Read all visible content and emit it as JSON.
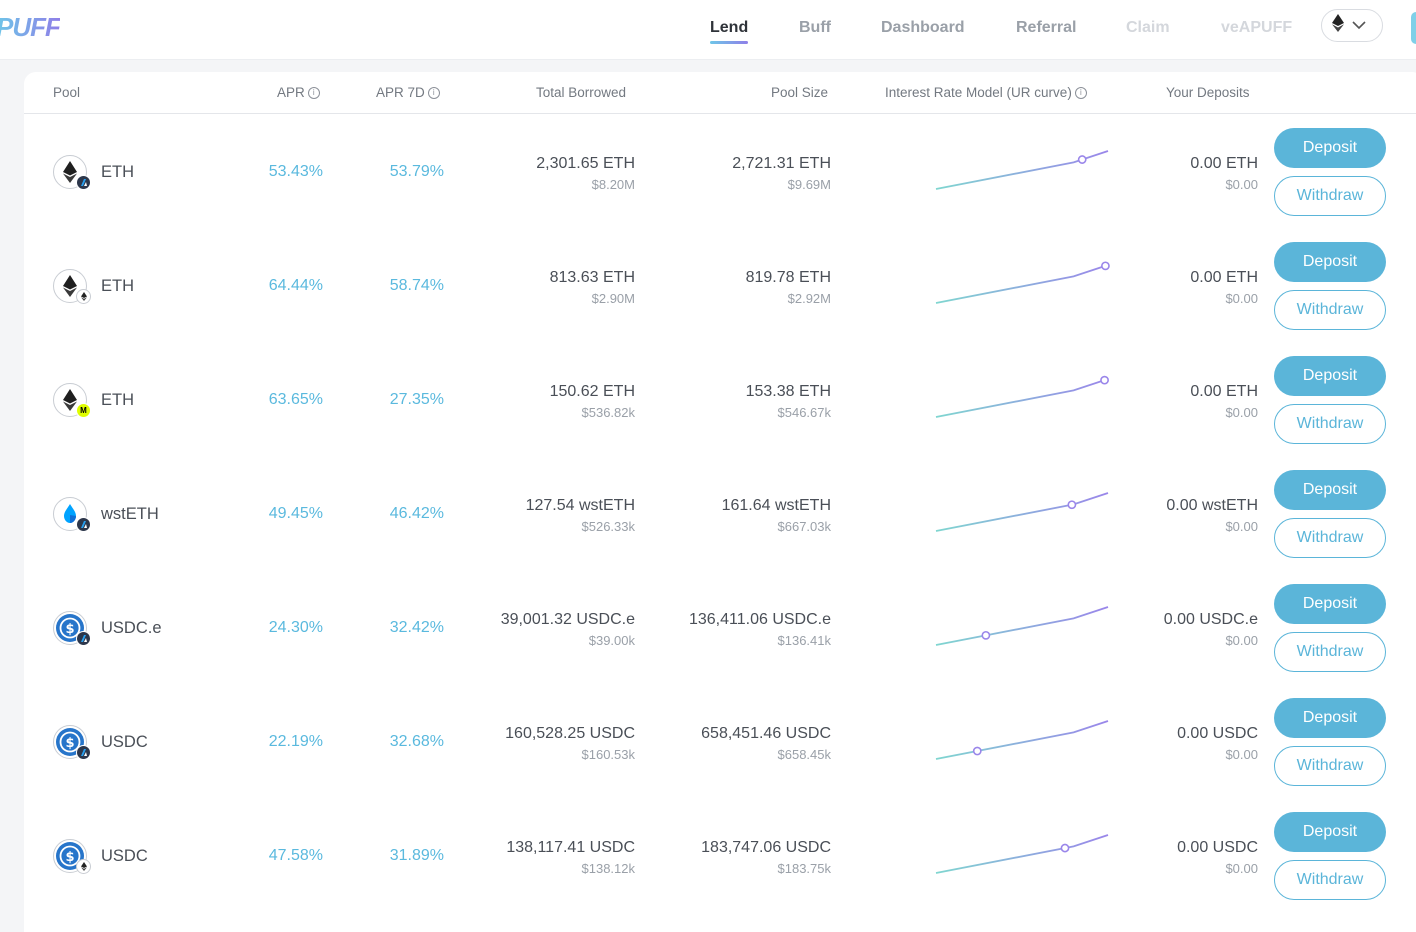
{
  "header": {
    "logo": "PUFF",
    "nav": [
      {
        "label": "Lend",
        "state": "active"
      },
      {
        "label": "Buff",
        "state": "normal"
      },
      {
        "label": "Dashboard",
        "state": "normal"
      },
      {
        "label": "Referral",
        "state": "normal"
      },
      {
        "label": "Claim",
        "state": "disabled"
      },
      {
        "label": "veAPUFF",
        "state": "disabled"
      }
    ],
    "network_icon": "eth-icon",
    "network_dropdown_icon": "chevron-down-icon"
  },
  "table": {
    "columns": {
      "pool": "Pool",
      "apr": "APR",
      "apr7d": "APR 7D",
      "total_borrowed": "Total Borrowed",
      "pool_size": "Pool Size",
      "interest_model": "Interest Rate Model (UR curve)",
      "your_deposits": "Your Deposits"
    },
    "deposit_label": "Deposit",
    "withdraw_label": "Withdraw",
    "rows": [
      {
        "asset": "ETH",
        "asset_icon": "eth-icon",
        "chain_badge": "arbitrum-icon",
        "apr": "53.43%",
        "apr7d": "53.79%",
        "borrowed": "2,301.65 ETH",
        "borrowed_usd": "$8.20M",
        "pool_size": "2,721.31 ETH",
        "pool_size_usd": "$9.69M",
        "utilization": 0.85,
        "deposit": "0.00 ETH",
        "deposit_usd": "$0.00"
      },
      {
        "asset": "ETH",
        "asset_icon": "eth-icon",
        "chain_badge": "ethereum-icon",
        "apr": "64.44%",
        "apr7d": "58.74%",
        "borrowed": "813.63 ETH",
        "borrowed_usd": "$2.90M",
        "pool_size": "819.78 ETH",
        "pool_size_usd": "$2.92M",
        "utilization": 0.99,
        "deposit": "0.00 ETH",
        "deposit_usd": "$0.00"
      },
      {
        "asset": "ETH",
        "asset_icon": "eth-icon",
        "chain_badge": "mode-icon",
        "apr": "63.65%",
        "apr7d": "27.35%",
        "borrowed": "150.62 ETH",
        "borrowed_usd": "$536.82k",
        "pool_size": "153.38 ETH",
        "pool_size_usd": "$546.67k",
        "utilization": 0.98,
        "deposit": "0.00 ETH",
        "deposit_usd": "$0.00"
      },
      {
        "asset": "wstETH",
        "asset_icon": "wsteth-icon",
        "chain_badge": "arbitrum-icon",
        "apr": "49.45%",
        "apr7d": "46.42%",
        "borrowed": "127.54 wstETH",
        "borrowed_usd": "$526.33k",
        "pool_size": "161.64 wstETH",
        "pool_size_usd": "$667.03k",
        "utilization": 0.79,
        "deposit": "0.00 wstETH",
        "deposit_usd": "$0.00"
      },
      {
        "asset": "USDC.e",
        "asset_icon": "usdc-icon",
        "chain_badge": "arbitrum-icon",
        "apr": "24.30%",
        "apr7d": "32.42%",
        "borrowed": "39,001.32 USDC.e",
        "borrowed_usd": "$39.00k",
        "pool_size": "136,411.06 USDC.e",
        "pool_size_usd": "$136.41k",
        "utilization": 0.29,
        "deposit": "0.00 USDC.e",
        "deposit_usd": "$0.00"
      },
      {
        "asset": "USDC",
        "asset_icon": "usdc-icon",
        "chain_badge": "arbitrum-icon",
        "apr": "22.19%",
        "apr7d": "32.68%",
        "borrowed": "160,528.25 USDC",
        "borrowed_usd": "$160.53k",
        "pool_size": "658,451.46 USDC",
        "pool_size_usd": "$658.45k",
        "utilization": 0.24,
        "deposit": "0.00 USDC",
        "deposit_usd": "$0.00"
      },
      {
        "asset": "USDC",
        "asset_icon": "usdc-icon",
        "chain_badge": "ethereum-icon",
        "apr": "47.58%",
        "apr7d": "31.89%",
        "borrowed": "138,117.41 USDC",
        "borrowed_usd": "$138.12k",
        "pool_size": "183,747.06 USDC",
        "pool_size_usd": "$183.75k",
        "utilization": 0.75,
        "deposit": "0.00 USDC",
        "deposit_usd": "$0.00"
      }
    ]
  },
  "colors": {
    "accent": "#5bb5d9",
    "curve_start": "#7fd6d0",
    "curve_end": "#9a86ea"
  }
}
